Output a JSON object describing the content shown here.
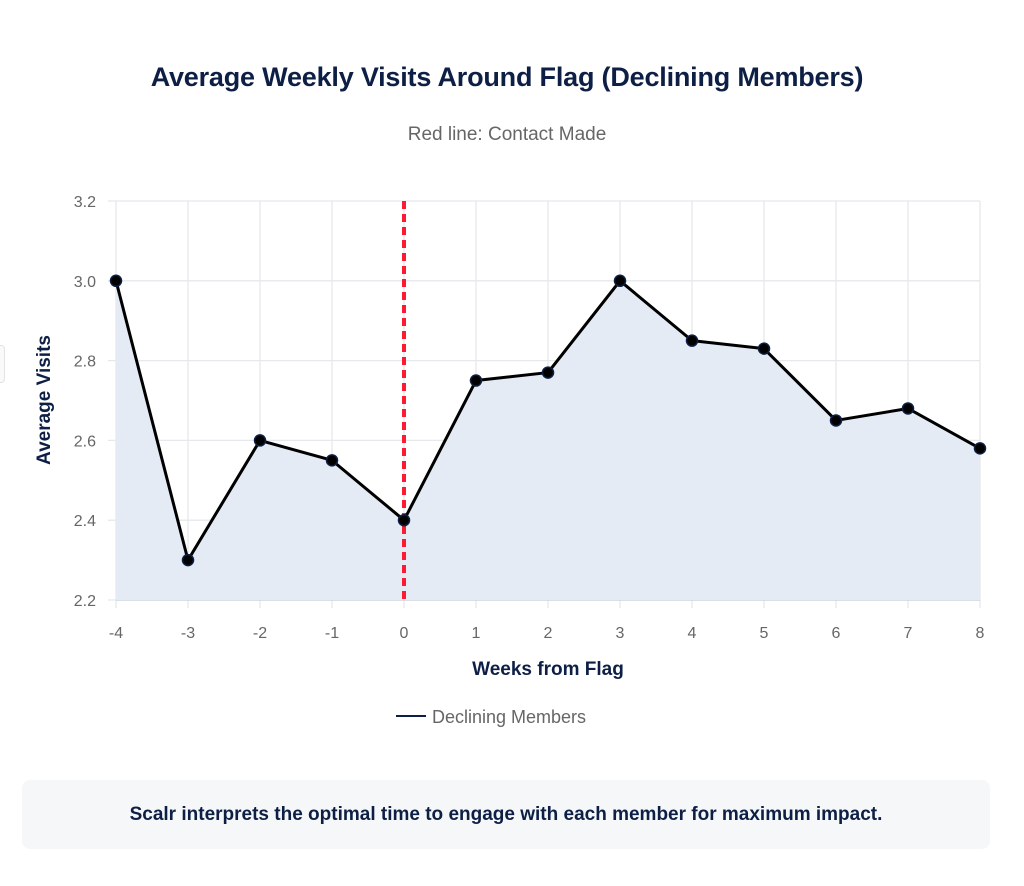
{
  "header": {
    "title": "Average Weekly Visits Around Flag (Declining Members)",
    "subtitle": "Red line: Contact Made"
  },
  "callout": {
    "text": "Scalr interprets the optimal time to engage with each member for maximum impact."
  },
  "colors": {
    "line": "#000000",
    "marker": "#0d1f45",
    "fill": "#e4ebf5",
    "grid": "#e5e8ec",
    "contact_line": "#ff1a33",
    "title": "#0d1f45"
  },
  "chart_data": {
    "type": "area",
    "title": "Average Weekly Visits Around Flag (Declining Members)",
    "subtitle": "Red line: Contact Made",
    "xlabel": "Weeks from Flag",
    "ylabel": "Average Visits",
    "x": [
      -4,
      -3,
      -2,
      -1,
      0,
      1,
      2,
      3,
      4,
      5,
      6,
      7,
      8
    ],
    "series": [
      {
        "name": "Declining Members",
        "values": [
          3.0,
          2.3,
          2.6,
          2.55,
          2.4,
          2.75,
          2.77,
          3.0,
          2.85,
          2.83,
          2.65,
          2.68,
          2.58
        ]
      }
    ],
    "xlim": [
      -4,
      8
    ],
    "ylim": [
      2.2,
      3.2
    ],
    "xticks": [
      "-4",
      "-3",
      "-2",
      "-1",
      "0",
      "1",
      "2",
      "3",
      "4",
      "5",
      "6",
      "7",
      "8"
    ],
    "yticks": [
      "2.2",
      "2.4",
      "2.6",
      "2.8",
      "3.0",
      "3.2"
    ],
    "annotations": [
      {
        "type": "vertical-dashed-line",
        "x": 0,
        "label": "Contact Made",
        "color": "red"
      }
    ],
    "grid": true,
    "legend": {
      "position": "bottom-center",
      "entries": [
        "Declining Members"
      ]
    }
  }
}
